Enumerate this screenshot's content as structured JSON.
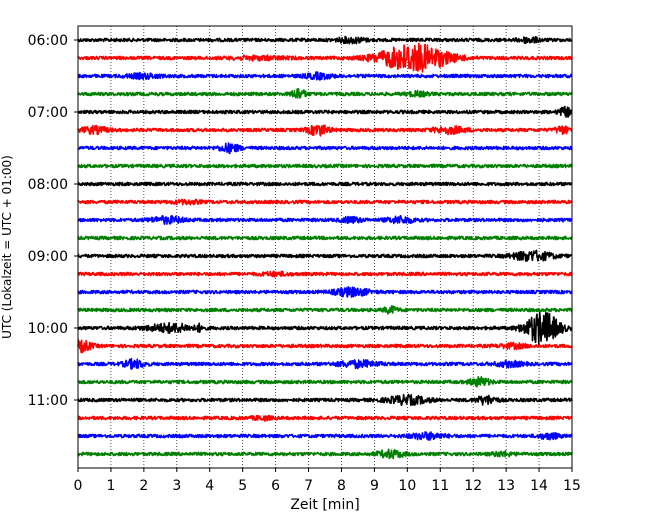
{
  "chart_data": {
    "type": "line",
    "subtype": "helicorder",
    "xlabel": "Zeit  [min]",
    "ylabel": "UTC (Lokalzeit = UTC + 01:00)",
    "xlim": [
      0,
      15
    ],
    "x_ticks": [
      0,
      1,
      2,
      3,
      4,
      5,
      6,
      7,
      8,
      9,
      10,
      11,
      12,
      13,
      14,
      15
    ],
    "y_tick_labels": [
      "06:00",
      "07:00",
      "08:00",
      "09:00",
      "10:00",
      "11:00"
    ],
    "grid": "vertical dotted at each minute",
    "trace_interval_min": 15,
    "start_time": "06:00",
    "colors": [
      "#000000",
      "#ff0000",
      "#0000ff",
      "#008000"
    ],
    "traces": [
      {
        "label": "06:00",
        "color": "#000000",
        "events": [
          {
            "t": 8.3,
            "amp": 0.5,
            "dur": 0.4
          },
          {
            "t": 13.7,
            "amp": 0.5,
            "dur": 0.3
          }
        ]
      },
      {
        "label": "06:15",
        "color": "#ff0000",
        "events": [
          {
            "t": 10.2,
            "amp": 2.8,
            "dur": 1.0
          },
          {
            "t": 5.5,
            "amp": 0.3,
            "dur": 0.8
          }
        ]
      },
      {
        "label": "06:30",
        "color": "#0000ff",
        "events": [
          {
            "t": 2.0,
            "amp": 0.4,
            "dur": 0.5
          },
          {
            "t": 7.3,
            "amp": 0.5,
            "dur": 0.4
          }
        ]
      },
      {
        "label": "06:45",
        "color": "#008000",
        "events": [
          {
            "t": 6.7,
            "amp": 1.0,
            "dur": 0.2
          },
          {
            "t": 10.3,
            "amp": 0.4,
            "dur": 0.3
          }
        ]
      },
      {
        "label": "07:00",
        "color": "#000000",
        "events": [
          {
            "t": 14.8,
            "amp": 0.8,
            "dur": 0.2
          }
        ]
      },
      {
        "label": "07:15",
        "color": "#ff0000",
        "events": [
          {
            "t": 7.3,
            "amp": 1.0,
            "dur": 0.3
          },
          {
            "t": 0.5,
            "amp": 0.6,
            "dur": 0.4
          },
          {
            "t": 14.7,
            "amp": 0.7,
            "dur": 0.2
          },
          {
            "t": 11.3,
            "amp": 0.6,
            "dur": 0.5
          }
        ]
      },
      {
        "label": "07:30",
        "color": "#0000ff",
        "events": [
          {
            "t": 4.6,
            "amp": 0.8,
            "dur": 0.3
          }
        ]
      },
      {
        "label": "07:45",
        "color": "#008000",
        "events": []
      },
      {
        "label": "08:00",
        "color": "#000000",
        "events": []
      },
      {
        "label": "08:15",
        "color": "#ff0000",
        "events": [
          {
            "t": 3.3,
            "amp": 0.3,
            "dur": 0.4
          }
        ]
      },
      {
        "label": "08:30",
        "color": "#0000ff",
        "events": [
          {
            "t": 2.7,
            "amp": 0.6,
            "dur": 0.5
          },
          {
            "t": 8.3,
            "amp": 0.5,
            "dur": 0.3
          },
          {
            "t": 9.8,
            "amp": 0.6,
            "dur": 0.4
          }
        ]
      },
      {
        "label": "08:45",
        "color": "#008000",
        "events": []
      },
      {
        "label": "09:00",
        "color": "#000000",
        "events": [
          {
            "t": 13.8,
            "amp": 0.9,
            "dur": 0.6
          }
        ]
      },
      {
        "label": "09:15",
        "color": "#ff0000",
        "events": [
          {
            "t": 6.0,
            "amp": 0.3,
            "dur": 0.4
          }
        ]
      },
      {
        "label": "09:30",
        "color": "#0000ff",
        "events": [
          {
            "t": 8.3,
            "amp": 0.8,
            "dur": 0.5
          }
        ]
      },
      {
        "label": "09:45",
        "color": "#008000",
        "events": [
          {
            "t": 9.5,
            "amp": 0.6,
            "dur": 0.2
          }
        ]
      },
      {
        "label": "10:00",
        "color": "#000000",
        "events": [
          {
            "t": 14.1,
            "amp": 3.2,
            "dur": 0.5
          },
          {
            "t": 2.8,
            "amp": 0.8,
            "dur": 0.7
          },
          {
            "t": 3.7,
            "amp": 0.5,
            "dur": 0.1
          }
        ]
      },
      {
        "label": "10:15",
        "color": "#ff0000",
        "events": [
          {
            "t": 0.1,
            "amp": 1.0,
            "dur": 0.3
          },
          {
            "t": 13.2,
            "amp": 0.4,
            "dur": 0.4
          }
        ]
      },
      {
        "label": "10:30",
        "color": "#0000ff",
        "events": [
          {
            "t": 1.7,
            "amp": 0.8,
            "dur": 0.3
          },
          {
            "t": 8.5,
            "amp": 0.6,
            "dur": 0.6
          },
          {
            "t": 13.1,
            "amp": 0.5,
            "dur": 0.4
          }
        ]
      },
      {
        "label": "10:45",
        "color": "#008000",
        "events": [
          {
            "t": 12.2,
            "amp": 0.8,
            "dur": 0.3
          }
        ]
      },
      {
        "label": "11:00",
        "color": "#000000",
        "events": [
          {
            "t": 10.0,
            "amp": 0.8,
            "dur": 0.6
          },
          {
            "t": 12.4,
            "amp": 0.8,
            "dur": 0.3
          }
        ]
      },
      {
        "label": "11:15",
        "color": "#ff0000",
        "events": [
          {
            "t": 5.6,
            "amp": 0.3,
            "dur": 0.3
          }
        ]
      },
      {
        "label": "11:30",
        "color": "#0000ff",
        "events": [
          {
            "t": 10.6,
            "amp": 0.6,
            "dur": 0.5
          },
          {
            "t": 14.3,
            "amp": 0.5,
            "dur": 0.3
          }
        ]
      },
      {
        "label": "11:45",
        "color": "#008000",
        "events": [
          {
            "t": 9.5,
            "amp": 0.7,
            "dur": 0.4
          },
          {
            "t": 12.9,
            "amp": 0.4,
            "dur": 0.3
          }
        ]
      }
    ]
  }
}
